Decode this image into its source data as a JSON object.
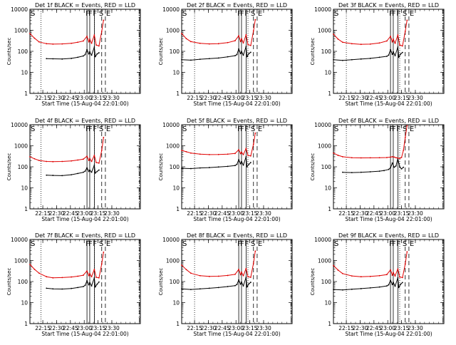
{
  "figure": {
    "xlabel": "Start Time (15-Aug-04 22:01:00)",
    "ylabel": "Counts/sec",
    "title_suffix": " BLACK = Events, RED = LLD",
    "y_tick_labels": [
      "1",
      "10",
      "100",
      "1000",
      "10000"
    ],
    "x_tick_labels": [
      "22:15",
      "22:30",
      "22:45",
      "23:00",
      "23:15",
      "23:30"
    ],
    "marker_labels": {
      "start": "S",
      "flare": "F",
      "end": "E"
    },
    "colors": {
      "events": "#000000",
      "lld": "#e00000"
    }
  },
  "chart_data": [
    {
      "type": "line",
      "title": "Det 1f BLACK = Events, RED = LLD",
      "detector": "Det 1f",
      "x_unit": "minutes after 22:01:00",
      "xlim": [
        0,
        120
      ],
      "ylim": [
        1,
        10000
      ],
      "yscale": "log",
      "marker_times": {
        "S": 0,
        "dotted": [
          12,
          70
        ],
        "F": [
          62,
          65,
          70
        ],
        "dashed": [
          78
        ],
        "E": 82,
        "dash_dot": [
          119
        ]
      },
      "series": [
        {
          "name": "Events",
          "color": "black",
          "x": [
            18,
            25,
            35,
            45,
            52,
            58,
            60,
            62,
            64,
            65,
            67,
            70,
            71,
            73,
            75
          ],
          "y": [
            45,
            44,
            43,
            46,
            52,
            60,
            70,
            120,
            75,
            95,
            65,
            160,
            55,
            75,
            85
          ]
        },
        {
          "name": "LLD",
          "color": "red",
          "x": [
            0,
            5,
            10,
            18,
            25,
            35,
            45,
            52,
            58,
            62,
            64,
            65,
            67,
            70,
            72,
            75,
            78,
            80
          ],
          "y": [
            700,
            420,
            280,
            230,
            220,
            225,
            240,
            270,
            310,
            520,
            280,
            380,
            240,
            600,
            200,
            180,
            900,
            3000
          ]
        }
      ]
    },
    {
      "type": "line",
      "title": "Det 2f BLACK = Events, RED = LLD",
      "detector": "Det 2f",
      "x_unit": "minutes after 22:01:00",
      "xlim": [
        0,
        120
      ],
      "ylim": [
        1,
        10000
      ],
      "yscale": "log",
      "marker_times": {
        "S": 0,
        "dotted": [
          14,
          72
        ],
        "F": [
          62,
          65,
          70
        ],
        "dashed": [
          78
        ],
        "E": 82,
        "dash_dot": [
          119
        ]
      },
      "series": [
        {
          "name": "Events",
          "color": "black",
          "x": [
            0,
            10,
            20,
            30,
            40,
            50,
            58,
            60,
            62,
            64,
            65,
            67,
            70,
            71,
            73,
            75
          ],
          "y": [
            40,
            38,
            42,
            45,
            48,
            55,
            62,
            70,
            130,
            78,
            100,
            65,
            170,
            55,
            78,
            90
          ]
        },
        {
          "name": "LLD",
          "color": "red",
          "x": [
            0,
            5,
            10,
            20,
            30,
            40,
            50,
            58,
            62,
            64,
            65,
            67,
            70,
            72,
            75,
            78,
            80
          ],
          "y": [
            700,
            400,
            290,
            240,
            225,
            230,
            260,
            320,
            550,
            290,
            400,
            250,
            620,
            210,
            190,
            950,
            3200
          ]
        }
      ]
    },
    {
      "type": "line",
      "title": "Det 3f BLACK = Events, RED = LLD",
      "detector": "Det 3f",
      "x_unit": "minutes after 22:01:00",
      "xlim": [
        0,
        120
      ],
      "ylim": [
        1,
        10000
      ],
      "yscale": "log",
      "marker_times": {
        "S": 0,
        "dotted": [
          14,
          72
        ],
        "F": [
          62,
          65,
          70
        ],
        "dashed": [
          78
        ],
        "E": 82,
        "dash_dot": [
          119
        ]
      },
      "series": [
        {
          "name": "Events",
          "color": "black",
          "x": [
            0,
            10,
            20,
            30,
            40,
            50,
            58,
            60,
            62,
            64,
            65,
            67,
            70,
            71,
            73,
            75
          ],
          "y": [
            40,
            37,
            40,
            43,
            46,
            52,
            58,
            66,
            120,
            72,
            95,
            62,
            160,
            52,
            75,
            88
          ]
        },
        {
          "name": "LLD",
          "color": "red",
          "x": [
            0,
            5,
            10,
            20,
            30,
            40,
            50,
            58,
            62,
            64,
            65,
            67,
            70,
            72,
            75,
            78,
            80
          ],
          "y": [
            650,
            380,
            270,
            230,
            215,
            220,
            250,
            310,
            520,
            280,
            380,
            240,
            600,
            200,
            180,
            900,
            3000
          ]
        }
      ]
    },
    {
      "type": "line",
      "title": "Det 4f BLACK = Events, RED = LLD",
      "detector": "Det 4f",
      "x_unit": "minutes after 22:01:00",
      "xlim": [
        0,
        120
      ],
      "ylim": [
        1,
        10000
      ],
      "yscale": "log",
      "marker_times": {
        "S": 0,
        "dotted": [
          12,
          70
        ],
        "F": [
          62,
          65,
          70
        ],
        "dashed": [
          78
        ],
        "E": 82,
        "dash_dot": [
          119
        ]
      },
      "series": [
        {
          "name": "Events",
          "color": "black",
          "x": [
            18,
            25,
            35,
            45,
            52,
            58,
            60,
            62,
            64,
            65,
            67,
            70,
            71,
            73,
            75
          ],
          "y": [
            40,
            39,
            38,
            42,
            48,
            55,
            62,
            90,
            60,
            70,
            55,
            120,
            50,
            60,
            70
          ]
        },
        {
          "name": "LLD",
          "color": "red",
          "x": [
            0,
            5,
            10,
            18,
            25,
            35,
            45,
            52,
            58,
            62,
            64,
            65,
            67,
            70,
            72,
            75,
            78,
            80
          ],
          "y": [
            300,
            240,
            200,
            180,
            175,
            180,
            190,
            210,
            230,
            320,
            200,
            250,
            180,
            350,
            160,
            150,
            600,
            2500
          ]
        }
      ]
    },
    {
      "type": "line",
      "title": "Det 5f BLACK = Events, RED = LLD",
      "detector": "Det 5f",
      "x_unit": "minutes after 22:01:00",
      "xlim": [
        0,
        120
      ],
      "ylim": [
        1,
        10000
      ],
      "yscale": "log",
      "marker_times": {
        "S": 0,
        "dotted": [
          14,
          72
        ],
        "F": [
          62,
          65,
          70
        ],
        "dashed": [
          78
        ],
        "E": 82,
        "dash_dot": [
          119
        ]
      },
      "series": [
        {
          "name": "Events",
          "color": "black",
          "x": [
            0,
            10,
            20,
            30,
            40,
            50,
            58,
            60,
            62,
            64,
            65,
            67,
            70,
            71,
            73,
            75
          ],
          "y": [
            85,
            82,
            88,
            92,
            98,
            105,
            115,
            130,
            220,
            140,
            180,
            120,
            300,
            100,
            130,
            160
          ]
        },
        {
          "name": "LLD",
          "color": "red",
          "x": [
            0,
            5,
            10,
            20,
            30,
            40,
            50,
            58,
            62,
            64,
            65,
            67,
            70,
            72,
            75,
            78,
            80
          ],
          "y": [
            600,
            520,
            450,
            400,
            380,
            385,
            400,
            430,
            650,
            420,
            500,
            380,
            750,
            350,
            330,
            1200,
            4000
          ]
        }
      ]
    },
    {
      "type": "line",
      "title": "Det 6f BLACK = Events, RED = LLD",
      "detector": "Det 6f",
      "x_unit": "minutes after 22:01:00",
      "xlim": [
        0,
        120
      ],
      "ylim": [
        1,
        10000
      ],
      "yscale": "log",
      "marker_times": {
        "S": 0,
        "dotted": [
          14,
          72
        ],
        "F": [
          62,
          65,
          70
        ],
        "dashed": [
          78
        ],
        "E": 82,
        "dash_dot": [
          119
        ]
      },
      "series": [
        {
          "name": "Events",
          "color": "black",
          "x": [
            10,
            20,
            30,
            40,
            50,
            55,
            60,
            62,
            64,
            66,
            68,
            70,
            72,
            74,
            76
          ],
          "y": [
            55,
            53,
            55,
            58,
            62,
            66,
            75,
            90,
            150,
            95,
            110,
            250,
            100,
            80,
            95
          ]
        },
        {
          "name": "LLD",
          "color": "red",
          "x": [
            0,
            5,
            10,
            20,
            30,
            40,
            50,
            58,
            62,
            64,
            66,
            68,
            70,
            72,
            74,
            76,
            78,
            80
          ],
          "y": [
            450,
            350,
            300,
            270,
            265,
            268,
            270,
            275,
            290,
            300,
            290,
            270,
            260,
            250,
            280,
            600,
            2500,
            9000
          ]
        }
      ]
    },
    {
      "type": "line",
      "title": "Det 7f BLACK = Events, RED = LLD",
      "detector": "Det 7f",
      "x_unit": "minutes after 22:01:00",
      "xlim": [
        0,
        120
      ],
      "ylim": [
        1,
        10000
      ],
      "yscale": "log",
      "marker_times": {
        "S": 0,
        "dotted": [
          12,
          70
        ],
        "F": [
          62,
          65,
          70
        ],
        "dashed": [
          78
        ],
        "E": 82,
        "dash_dot": [
          119
        ]
      },
      "series": [
        {
          "name": "Events",
          "color": "black",
          "x": [
            18,
            25,
            35,
            45,
            52,
            58,
            60,
            62,
            64,
            65,
            67,
            70,
            71,
            73,
            75
          ],
          "y": [
            48,
            45,
            44,
            47,
            52,
            58,
            66,
            110,
            70,
            90,
            62,
            150,
            55,
            75,
            95
          ]
        },
        {
          "name": "LLD",
          "color": "red",
          "x": [
            0,
            5,
            10,
            18,
            25,
            35,
            45,
            52,
            58,
            62,
            64,
            65,
            67,
            70,
            72,
            75,
            78,
            80
          ],
          "y": [
            650,
            380,
            250,
            170,
            150,
            155,
            165,
            180,
            200,
            320,
            190,
            240,
            170,
            380,
            160,
            150,
            700,
            2500
          ]
        }
      ]
    },
    {
      "type": "line",
      "title": "Det 8f BLACK = Events, RED = LLD",
      "detector": "Det 8f",
      "x_unit": "minutes after 22:01:00",
      "xlim": [
        0,
        120
      ],
      "ylim": [
        1,
        10000
      ],
      "yscale": "log",
      "marker_times": {
        "S": 0,
        "dotted": [
          14,
          72
        ],
        "F": [
          62,
          65,
          70
        ],
        "dashed": [
          78
        ],
        "E": 82,
        "dash_dot": [
          119
        ]
      },
      "series": [
        {
          "name": "Events",
          "color": "black",
          "x": [
            0,
            10,
            20,
            30,
            40,
            50,
            58,
            60,
            62,
            64,
            65,
            67,
            70,
            71,
            73,
            75
          ],
          "y": [
            45,
            42,
            45,
            48,
            52,
            58,
            64,
            72,
            120,
            75,
            95,
            62,
            160,
            55,
            78,
            92
          ]
        },
        {
          "name": "LLD",
          "color": "red",
          "x": [
            0,
            5,
            10,
            20,
            30,
            40,
            50,
            58,
            62,
            64,
            65,
            67,
            70,
            72,
            75,
            78,
            80
          ],
          "y": [
            600,
            370,
            250,
            190,
            175,
            180,
            195,
            220,
            380,
            210,
            280,
            190,
            420,
            170,
            160,
            750,
            2800
          ]
        }
      ]
    },
    {
      "type": "line",
      "title": "Det 9f BLACK = Events, RED = LLD",
      "detector": "Det 9f",
      "x_unit": "minutes after 22:01:00",
      "xlim": [
        0,
        120
      ],
      "ylim": [
        1,
        10000
      ],
      "yscale": "log",
      "marker_times": {
        "S": 0,
        "dotted": [
          14,
          72
        ],
        "F": [
          62,
          65,
          70
        ],
        "dashed": [
          78
        ],
        "E": 82,
        "dash_dot": [
          119
        ]
      },
      "series": [
        {
          "name": "Events",
          "color": "black",
          "x": [
            0,
            10,
            20,
            30,
            40,
            50,
            58,
            60,
            62,
            64,
            65,
            67,
            70,
            71,
            73,
            75
          ],
          "y": [
            42,
            40,
            43,
            46,
            50,
            55,
            62,
            70,
            115,
            72,
            92,
            60,
            150,
            52,
            75,
            90
          ]
        },
        {
          "name": "LLD",
          "color": "red",
          "x": [
            0,
            5,
            10,
            20,
            30,
            40,
            50,
            58,
            62,
            64,
            65,
            67,
            70,
            72,
            75,
            78,
            80
          ],
          "y": [
            580,
            350,
            240,
            185,
            170,
            175,
            190,
            215,
            360,
            200,
            270,
            185,
            400,
            165,
            155,
            700,
            2600
          ]
        }
      ]
    }
  ]
}
